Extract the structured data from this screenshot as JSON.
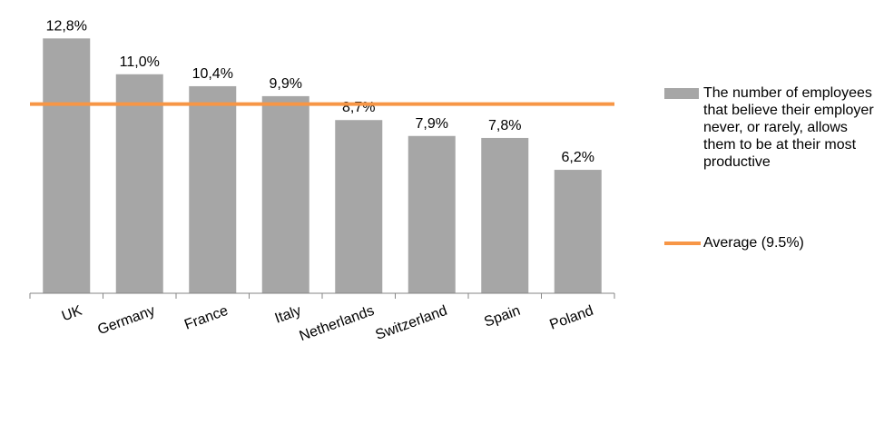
{
  "chart_data": {
    "type": "bar",
    "categories": [
      "UK",
      "Germany",
      "France",
      "Italy",
      "Netherlands",
      "Switzerland",
      "Spain",
      "Poland"
    ],
    "series": [
      {
        "name": "The number of employees that believe their employer never, or rarely, allows them to be at their most productive",
        "color": "#a6a6a6",
        "values": [
          12.8,
          11.0,
          10.4,
          9.9,
          8.7,
          7.9,
          7.8,
          6.2
        ],
        "value_labels": [
          "12,8%",
          "11,0%",
          "10,4%",
          "9,9%",
          "8,7%",
          "7,9%",
          "7,8%",
          "6,2%"
        ]
      }
    ],
    "average": {
      "name": "Average (9.5%)",
      "value": 9.5,
      "color": "#f79646"
    },
    "ylim": [
      0,
      14
    ]
  }
}
